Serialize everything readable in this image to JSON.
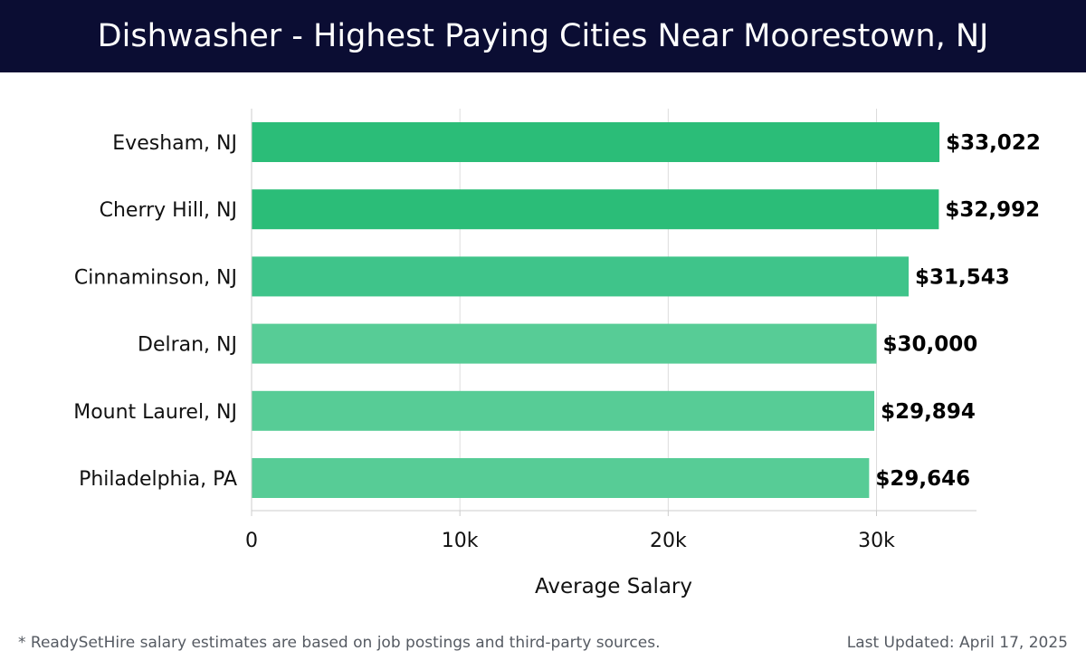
{
  "header": {
    "title": "Dishwasher - Highest Paying Cities Near Moorestown, NJ"
  },
  "chart_data": {
    "type": "bar",
    "orientation": "horizontal",
    "categories": [
      "Evesham, NJ",
      "Cherry Hill, NJ",
      "Cinnaminson, NJ",
      "Delran, NJ",
      "Mount Laurel, NJ",
      "Philadelphia, PA"
    ],
    "values": [
      33022,
      32992,
      31543,
      30000,
      29894,
      29646
    ],
    "value_labels": [
      "$33,022",
      "$32,992",
      "$31,543",
      "$30,000",
      "$29,894",
      "$29,646"
    ],
    "bar_colors": [
      "#2bbd78",
      "#2bbd78",
      "#3fc48a",
      "#57cc96",
      "#57cc96",
      "#57cc96"
    ],
    "xlabel": "Average Salary",
    "ylabel": "",
    "xlim": [
      0,
      34800
    ],
    "x_ticks": [
      0,
      10000,
      20000,
      30000
    ],
    "x_tick_labels": [
      "0",
      "10k",
      "20k",
      "30k"
    ],
    "grid": "vertical",
    "legend": "none"
  },
  "footer": {
    "note": "* ReadySetHire salary estimates are based on job postings and third-party sources.",
    "updated": "Last Updated: April 17, 2025"
  },
  "colors": {
    "header_bg": "#0b0d33",
    "header_text": "#ffffff",
    "gridline": "#dcdcdc",
    "axis_text": "#111111",
    "footer_text": "#555a62"
  }
}
